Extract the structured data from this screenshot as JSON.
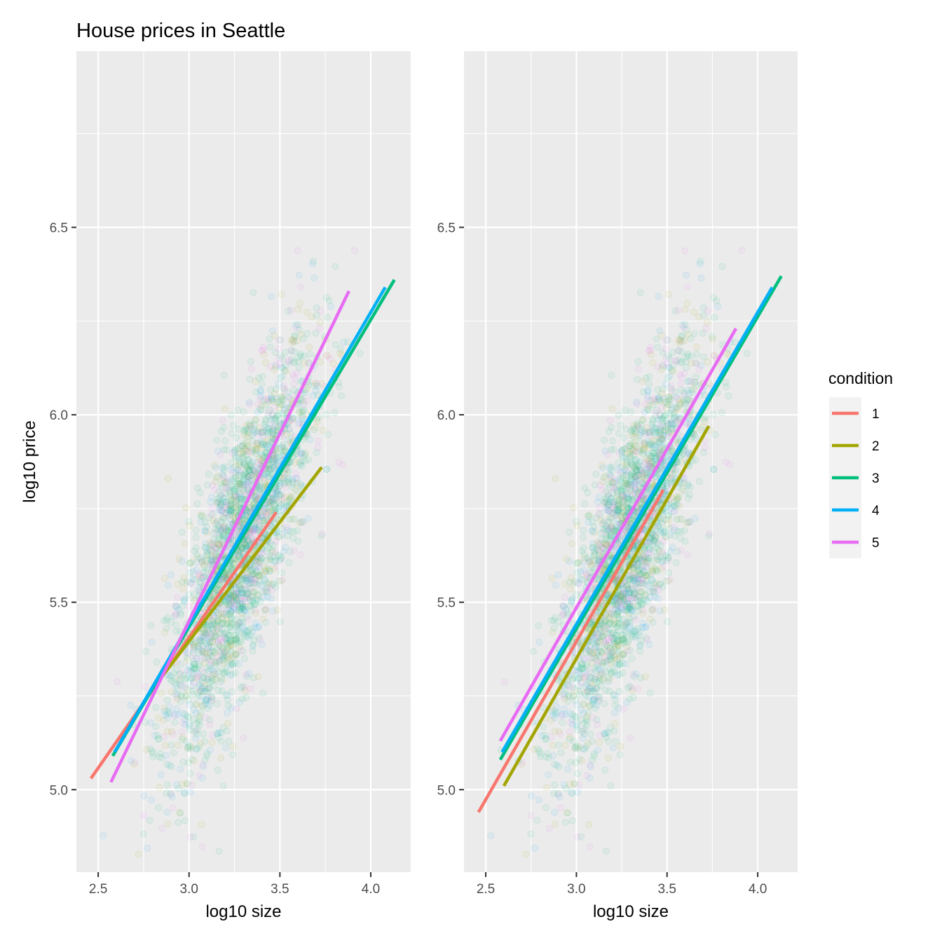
{
  "figure": {
    "title": "House prices in Seattle"
  },
  "legend": {
    "title": "condition",
    "placement": "right"
  },
  "chart_data": [
    {
      "type": "line",
      "panel": "left",
      "xlabel": "log10 size",
      "ylabel": "log10 price",
      "xlim": [
        2.38,
        4.22
      ],
      "ylim": [
        4.78,
        6.97
      ],
      "x_ticks": [
        2.5,
        3.0,
        3.5,
        4.0
      ],
      "x_tick_labels": [
        "2.5",
        "3.0",
        "3.5",
        "4.0"
      ],
      "y_ticks": [
        5.0,
        5.5,
        6.0,
        6.5
      ],
      "y_tick_labels": [
        "5.0",
        "5.5",
        "6.0",
        "6.5"
      ],
      "grid": true,
      "series": [
        {
          "name": "1",
          "color": "#F8766D",
          "x": [
            2.46,
            3.48
          ],
          "y": [
            5.03,
            5.74
          ]
        },
        {
          "name": "2",
          "color": "#A3A500",
          "x": [
            2.77,
            3.73
          ],
          "y": [
            5.25,
            5.86
          ]
        },
        {
          "name": "3",
          "color": "#00BF7D",
          "x": [
            2.58,
            4.13
          ],
          "y": [
            5.09,
            6.36
          ]
        },
        {
          "name": "4",
          "color": "#00B0F6",
          "x": [
            2.59,
            4.08
          ],
          "y": [
            5.1,
            6.34
          ]
        },
        {
          "name": "5",
          "color": "#E76BF3",
          "x": [
            2.57,
            3.88
          ],
          "y": [
            5.02,
            6.33
          ]
        }
      ]
    },
    {
      "type": "line",
      "panel": "right",
      "xlabel": "log10 size",
      "ylabel": "",
      "xlim": [
        2.38,
        4.22
      ],
      "ylim": [
        4.78,
        6.97
      ],
      "x_ticks": [
        2.5,
        3.0,
        3.5,
        4.0
      ],
      "x_tick_labels": [
        "2.5",
        "3.0",
        "3.5",
        "4.0"
      ],
      "y_ticks": [
        5.0,
        5.5,
        6.0,
        6.5
      ],
      "y_tick_labels": [
        "5.0",
        "5.5",
        "6.0",
        "6.5"
      ],
      "grid": true,
      "series": [
        {
          "name": "1",
          "color": "#F8766D",
          "x": [
            2.46,
            3.48
          ],
          "y": [
            4.94,
            5.8
          ]
        },
        {
          "name": "2",
          "color": "#A3A500",
          "x": [
            2.6,
            3.73
          ],
          "y": [
            5.01,
            5.97
          ]
        },
        {
          "name": "3",
          "color": "#00BF7D",
          "x": [
            2.58,
            4.13
          ],
          "y": [
            5.08,
            6.37
          ]
        },
        {
          "name": "4",
          "color": "#00B0F6",
          "x": [
            2.59,
            4.08
          ],
          "y": [
            5.1,
            6.34
          ]
        },
        {
          "name": "5",
          "color": "#E76BF3",
          "x": [
            2.58,
            3.88
          ],
          "y": [
            5.13,
            6.23
          ]
        }
      ]
    }
  ]
}
